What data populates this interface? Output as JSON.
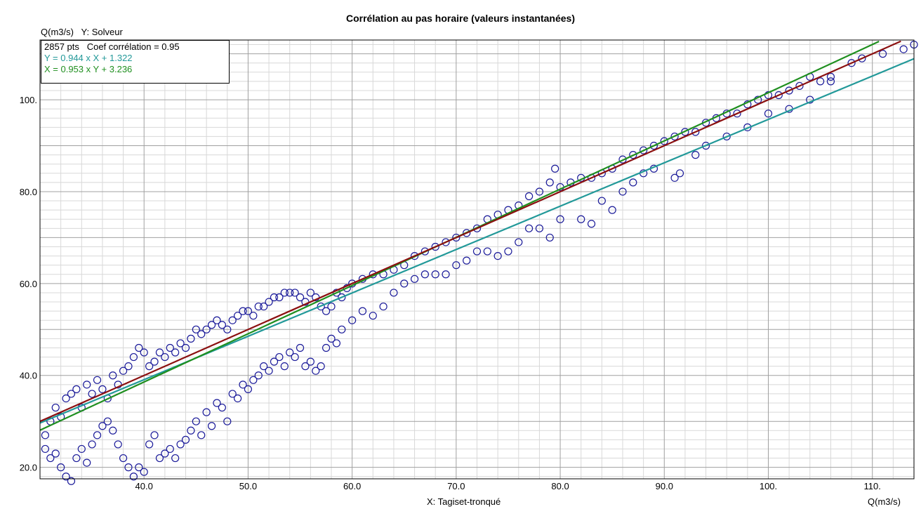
{
  "colors": {
    "points": "#1a1a99",
    "reg_y_on_x": "#229999",
    "reg_x_on_y": "#1f8f1f",
    "diagonal": "#8b1010",
    "grid_major": "#a0a0a0",
    "grid_minor": "#d8d8d8"
  },
  "chart_data": {
    "type": "scatter",
    "title": "Corrélation au pas horaire (valeurs instantanées)",
    "y_axis_top_label": "Q(m3/s)   Y: Solveur",
    "xlabel": "X: Tagiset-tronqué",
    "x_unit": "Q(m3/s)",
    "xlim": [
      30,
      114
    ],
    "ylim": [
      17.5,
      113
    ],
    "x_ticks": [
      40,
      50,
      60,
      70,
      80,
      90,
      100,
      110
    ],
    "x_tick_labels": [
      "40.0",
      "50.0",
      "60.0",
      "70.0",
      "80.0",
      "90.0",
      "100.",
      "110."
    ],
    "y_ticks": [
      20,
      40,
      60,
      80,
      100
    ],
    "y_tick_labels": [
      "20.0",
      "40.0",
      "60.0",
      "80.0",
      "100."
    ],
    "grid": true,
    "legend": {
      "placement": "top-left",
      "lines": [
        "2857 pts   Coef corrélation = 0.95",
        "Y = 0.944 x X + 1.322",
        "X = 0.953 x Y + 3.236"
      ]
    },
    "n_points": 2857,
    "correlation": 0.95,
    "regressions": [
      {
        "equation": "Y = 0.944 x X + 1.322",
        "slope": 0.944,
        "intercept": 1.322,
        "kind": "y_on_x"
      },
      {
        "equation": "X = 0.953 x Y + 3.236",
        "slope": 0.953,
        "intercept": 3.236,
        "kind": "x_on_y"
      },
      {
        "kind": "diagonal",
        "slope": 1,
        "intercept": 0
      }
    ],
    "points": [
      [
        30.5,
        27
      ],
      [
        31,
        30
      ],
      [
        31.5,
        33
      ],
      [
        32,
        31
      ],
      [
        32.5,
        35
      ],
      [
        33,
        36
      ],
      [
        33.5,
        37
      ],
      [
        34,
        33
      ],
      [
        34.5,
        38
      ],
      [
        35,
        36
      ],
      [
        35.5,
        39
      ],
      [
        36,
        37
      ],
      [
        36.5,
        35
      ],
      [
        37,
        40
      ],
      [
        37.5,
        38
      ],
      [
        38,
        41
      ],
      [
        38.5,
        42
      ],
      [
        39,
        44
      ],
      [
        39.5,
        46
      ],
      [
        40,
        45
      ],
      [
        40.5,
        42
      ],
      [
        41,
        43
      ],
      [
        41.5,
        45
      ],
      [
        42,
        44
      ],
      [
        42.5,
        46
      ],
      [
        43,
        45
      ],
      [
        43.5,
        47
      ],
      [
        44,
        46
      ],
      [
        44.5,
        48
      ],
      [
        45,
        50
      ],
      [
        45.5,
        49
      ],
      [
        46,
        50
      ],
      [
        46.5,
        51
      ],
      [
        47,
        52
      ],
      [
        47.5,
        51
      ],
      [
        48,
        50
      ],
      [
        48.5,
        52
      ],
      [
        49,
        53
      ],
      [
        49.5,
        54
      ],
      [
        50,
        54
      ],
      [
        50.5,
        53
      ],
      [
        51,
        55
      ],
      [
        51.5,
        55
      ],
      [
        52,
        56
      ],
      [
        52.5,
        57
      ],
      [
        53,
        57
      ],
      [
        53.5,
        58
      ],
      [
        54,
        58
      ],
      [
        54.5,
        58
      ],
      [
        55,
        57
      ],
      [
        55.5,
        56
      ],
      [
        56,
        58
      ],
      [
        56.5,
        57
      ],
      [
        57,
        55
      ],
      [
        57.5,
        54
      ],
      [
        58,
        55
      ],
      [
        58.5,
        58
      ],
      [
        59,
        57
      ],
      [
        59.5,
        59
      ],
      [
        60,
        60
      ],
      [
        61,
        61
      ],
      [
        62,
        62
      ],
      [
        63,
        62
      ],
      [
        64,
        63
      ],
      [
        65,
        64
      ],
      [
        66,
        66
      ],
      [
        67,
        67
      ],
      [
        68,
        68
      ],
      [
        69,
        69
      ],
      [
        70,
        70
      ],
      [
        71,
        71
      ],
      [
        72,
        72
      ],
      [
        73,
        74
      ],
      [
        74,
        75
      ],
      [
        75,
        76
      ],
      [
        76,
        77
      ],
      [
        77,
        79
      ],
      [
        78,
        80
      ],
      [
        79,
        82
      ],
      [
        79.5,
        85
      ],
      [
        80,
        81
      ],
      [
        81,
        82
      ],
      [
        82,
        83
      ],
      [
        83,
        83
      ],
      [
        84,
        84
      ],
      [
        85,
        85
      ],
      [
        86,
        87
      ],
      [
        87,
        88
      ],
      [
        88,
        89
      ],
      [
        89,
        90
      ],
      [
        90,
        91
      ],
      [
        91,
        92
      ],
      [
        92,
        93
      ],
      [
        93,
        93
      ],
      [
        94,
        95
      ],
      [
        95,
        96
      ],
      [
        96,
        97
      ],
      [
        97,
        97
      ],
      [
        98,
        99
      ],
      [
        99,
        100
      ],
      [
        100,
        101
      ],
      [
        101,
        101
      ],
      [
        102,
        102
      ],
      [
        103,
        103
      ],
      [
        104,
        105
      ],
      [
        105,
        104
      ],
      [
        106,
        105
      ],
      [
        108,
        108
      ],
      [
        109,
        109
      ],
      [
        111,
        110
      ],
      [
        113,
        111
      ],
      [
        114,
        112
      ],
      [
        30.5,
        24
      ],
      [
        31,
        22
      ],
      [
        31.5,
        23
      ],
      [
        32,
        20
      ],
      [
        32.5,
        18
      ],
      [
        33,
        17
      ],
      [
        33.5,
        22
      ],
      [
        34,
        24
      ],
      [
        34.5,
        21
      ],
      [
        35,
        25
      ],
      [
        35.5,
        27
      ],
      [
        36,
        29
      ],
      [
        36.5,
        30
      ],
      [
        37,
        28
      ],
      [
        37.5,
        25
      ],
      [
        38,
        22
      ],
      [
        38.5,
        20
      ],
      [
        39,
        18
      ],
      [
        39.5,
        20
      ],
      [
        40,
        19
      ],
      [
        40.5,
        25
      ],
      [
        41,
        27
      ],
      [
        41.5,
        22
      ],
      [
        42,
        23
      ],
      [
        42.5,
        24
      ],
      [
        43,
        22
      ],
      [
        43.5,
        25
      ],
      [
        44,
        26
      ],
      [
        44.5,
        28
      ],
      [
        45,
        30
      ],
      [
        45.5,
        27
      ],
      [
        46,
        32
      ],
      [
        46.5,
        29
      ],
      [
        47,
        34
      ],
      [
        47.5,
        33
      ],
      [
        48,
        30
      ],
      [
        48.5,
        36
      ],
      [
        49,
        35
      ],
      [
        49.5,
        38
      ],
      [
        50,
        37
      ],
      [
        50.5,
        39
      ],
      [
        51,
        40
      ],
      [
        51.5,
        42
      ],
      [
        52,
        41
      ],
      [
        52.5,
        43
      ],
      [
        53,
        44
      ],
      [
        53.5,
        42
      ],
      [
        54,
        45
      ],
      [
        54.5,
        44
      ],
      [
        55,
        46
      ],
      [
        55.5,
        42
      ],
      [
        56,
        43
      ],
      [
        56.5,
        41
      ],
      [
        57,
        42
      ],
      [
        57.5,
        46
      ],
      [
        58,
        48
      ],
      [
        58.5,
        47
      ],
      [
        59,
        50
      ],
      [
        60,
        52
      ],
      [
        61,
        54
      ],
      [
        62,
        53
      ],
      [
        63,
        55
      ],
      [
        64,
        58
      ],
      [
        65,
        60
      ],
      [
        66,
        61
      ],
      [
        67,
        62
      ],
      [
        68,
        62
      ],
      [
        69,
        62
      ],
      [
        70,
        64
      ],
      [
        71,
        65
      ],
      [
        72,
        67
      ],
      [
        73,
        67
      ],
      [
        74,
        66
      ],
      [
        75,
        67
      ],
      [
        76,
        69
      ],
      [
        77,
        72
      ],
      [
        78,
        72
      ],
      [
        79,
        70
      ],
      [
        80,
        74
      ],
      [
        82,
        74
      ],
      [
        83,
        73
      ],
      [
        84,
        78
      ],
      [
        85,
        76
      ],
      [
        86,
        80
      ],
      [
        87,
        82
      ],
      [
        88,
        84
      ],
      [
        89,
        85
      ],
      [
        91,
        83
      ],
      [
        91.5,
        84
      ],
      [
        93,
        88
      ],
      [
        94,
        90
      ],
      [
        96,
        92
      ],
      [
        98,
        94
      ],
      [
        100,
        97
      ],
      [
        102,
        98
      ],
      [
        104,
        100
      ],
      [
        106,
        104
      ]
    ]
  }
}
